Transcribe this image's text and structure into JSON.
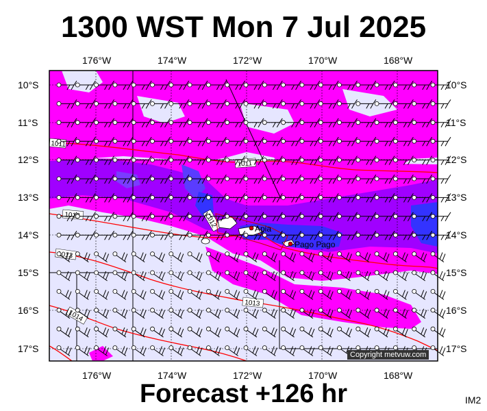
{
  "title": "1300 WST Mon 7 Jul 2025",
  "footer": "Forecast +126 hr",
  "code": "IM2",
  "copyright": "Copyright metvuw.com",
  "longitude_ticks": [
    "176°W",
    "174°W",
    "172°W",
    "170°W",
    "168°W"
  ],
  "latitude_ticks": [
    "10°S",
    "11°S",
    "12°S",
    "13°S",
    "14°S",
    "15°S",
    "16°S",
    "17°S"
  ],
  "isobar_labels": [
    "1011",
    "1011",
    "1012",
    "1012",
    "1013",
    "1013",
    "1014"
  ],
  "places": [
    {
      "name": "Apia",
      "lon": -171.76,
      "lat": -13.83
    },
    {
      "name": "Pago Pago",
      "lon": -170.7,
      "lat": -14.28
    }
  ],
  "colors": {
    "background_rain": "#e6e6ff",
    "magenta": "#ff00ff",
    "violet": "#9900ff",
    "blue": "#3333ff",
    "isobar": "#ff0000",
    "grid": "#000000"
  },
  "map_extent": {
    "lon_min": -177.3,
    "lon_max": -167.0,
    "lat_min": -17.3,
    "lat_max": -9.8
  }
}
